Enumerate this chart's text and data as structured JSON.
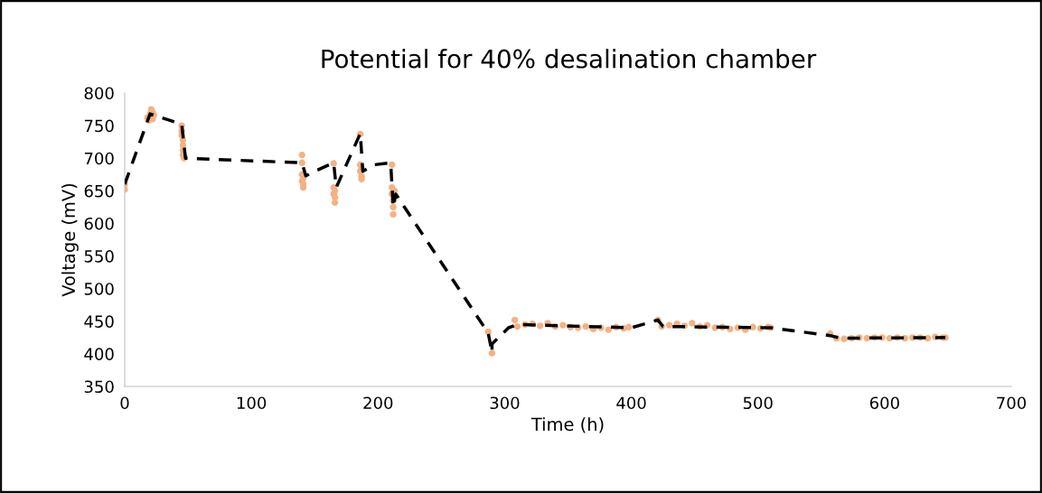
{
  "chart_data": {
    "type": "scatter",
    "title": "Potential for 40% desalination chamber",
    "xlabel": "Time (h)",
    "ylabel": "Voltage (mV)",
    "xlim": [
      0,
      700
    ],
    "xticks": [
      0,
      100,
      200,
      300,
      400,
      500,
      600,
      700
    ],
    "ylim": [
      350,
      800
    ],
    "yticks": [
      350,
      400,
      450,
      500,
      550,
      600,
      650,
      700,
      750,
      800
    ],
    "grid": false,
    "legend": false,
    "series": [
      {
        "color": "#f4b183",
        "marker": "circle",
        "x": [
          0,
          0,
          18,
          19,
          20,
          21,
          22,
          22,
          23,
          45,
          45,
          45,
          46,
          46,
          46,
          46,
          47,
          47,
          140,
          140,
          140,
          140,
          141,
          141,
          141,
          165,
          165,
          165,
          166,
          166,
          166,
          186,
          186,
          186,
          187,
          187,
          187,
          211,
          211,
          211,
          212,
          212,
          212,
          213,
          287,
          290,
          308,
          310,
          316,
          322,
          328,
          334,
          340,
          346,
          352,
          358,
          364,
          370,
          376,
          382,
          388,
          394,
          398,
          421,
          424,
          430,
          436,
          442,
          448,
          454,
          460,
          466,
          472,
          478,
          484,
          490,
          496,
          502,
          508,
          510,
          557,
          562,
          568,
          574,
          580,
          586,
          592,
          598,
          604,
          610,
          616,
          622,
          628,
          634,
          640,
          646,
          648
        ],
        "values": [
          660,
          652,
          762,
          758,
          768,
          775,
          770,
          760,
          766,
          750,
          742,
          735,
          728,
          720,
          712,
          705,
          700,
          702,
          705,
          693,
          675,
          665,
          660,
          670,
          655,
          692,
          655,
          645,
          640,
          632,
          650,
          737,
          690,
          680,
          672,
          668,
          685,
          690,
          655,
          645,
          635,
          625,
          614,
          650,
          434,
          401,
          452,
          442,
          445,
          446,
          443,
          447,
          442,
          444,
          441,
          440,
          442,
          438,
          440,
          437,
          441,
          439,
          441,
          452,
          442,
          444,
          446,
          443,
          447,
          442,
          444,
          440,
          441,
          438,
          440,
          437,
          441,
          439,
          441,
          440,
          431,
          424,
          423,
          424,
          425,
          424,
          425,
          425,
          424,
          425,
          424,
          425,
          425,
          424,
          426,
          425,
          425
        ]
      },
      {
        "type": "line",
        "color": "#000000",
        "line_style": "dashed",
        "x": [
          0,
          20,
          45,
          48,
          140,
          143,
          150,
          165,
          167,
          186,
          188,
          197,
          210,
          212,
          214,
          287,
          290,
          290,
          303,
          310,
          400,
          421,
          425,
          510,
          557,
          565,
          648
        ],
        "values": [
          660,
          768,
          752,
          700,
          693,
          673,
          680,
          693,
          655,
          738,
          680,
          690,
          693,
          625,
          645,
          432,
          402,
          415,
          440,
          445,
          440,
          452,
          442,
          440,
          428,
          424,
          425
        ]
      }
    ]
  }
}
